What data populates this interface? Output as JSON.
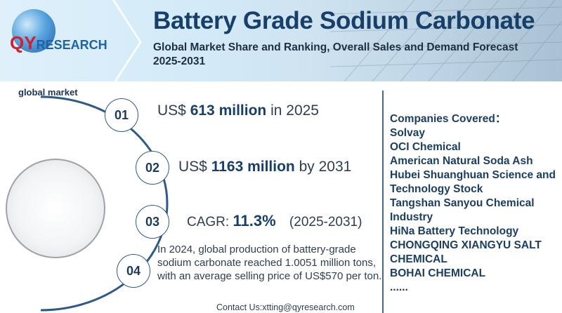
{
  "header": {
    "logo": {
      "prefix": "QY",
      "suffix": "RESEARCH"
    },
    "title": "Battery Grade Sodium Carbonate",
    "subtitle": "Global Market Share and Ranking, Overall Sales and Demand Forecast 2025-2031"
  },
  "market": {
    "label": "global market",
    "stats": [
      {
        "number": "01",
        "prefix": "US$",
        "value": "613 million",
        "suffix": "in 2025"
      },
      {
        "number": "02",
        "prefix": "US$",
        "value": "1163 million",
        "suffix": "by 2031"
      },
      {
        "number": "03",
        "prefix": "CAGR:",
        "value": "11.3%",
        "suffix": "(2025-2031)"
      },
      {
        "number": "04",
        "text": "In 2024, global production of battery-grade sodium carbonate reached 1.0051 million tons, with an average selling price of US$570 per ton."
      }
    ],
    "contact": "Contact Us:xtting@qyresearch.com"
  },
  "companies": {
    "heading": "Companies Covered：",
    "items": [
      "Solvay",
      "OCI Chemical",
      "American Natural Soda Ash",
      "Hubei Shuanghuan Science and",
      "Technology Stock",
      "Tangshan Sanyou Chemical",
      "Industry",
      "HiNa Battery Technology",
      "CHONGQING XIANGYU SALT",
      "CHEMICAL",
      "BOHAI CHEMICAL",
      "......"
    ]
  },
  "colors": {
    "title": "#173f69",
    "accent": "#2f5a86",
    "logo_red": "#d3202f",
    "logo_blue": "#1f63a6"
  }
}
